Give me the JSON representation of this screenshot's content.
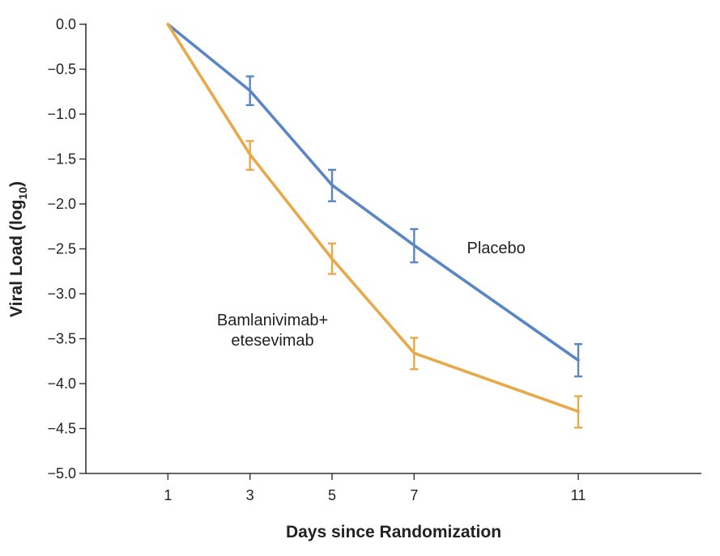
{
  "chart_data": {
    "type": "line",
    "xlabel": "Days since Randomization",
    "ylabel_main": "Viral Load (log",
    "ylabel_sub": "10",
    "ylabel_close": ")",
    "x": [
      1,
      3,
      5,
      7,
      11
    ],
    "x_ticks": [
      "1",
      "3",
      "5",
      "7",
      "11"
    ],
    "xlim": [
      -1,
      14
    ],
    "ylim": [
      -5.0,
      0.0
    ],
    "y_ticks": [
      "0.0",
      "−0.5",
      "−1.0",
      "−1.5",
      "−2.0",
      "−2.5",
      "−3.0",
      "−3.5",
      "−4.0",
      "−4.5",
      "−5.0"
    ],
    "y_tick_values": [
      0.0,
      -0.5,
      -1.0,
      -1.5,
      -2.0,
      -2.5,
      -3.0,
      -3.5,
      -4.0,
      -4.5,
      -5.0
    ],
    "grid": false,
    "series": [
      {
        "name": "Placebo",
        "label_lines": [
          "Placebo"
        ],
        "label_at": [
          9.0,
          -2.55
        ],
        "color": "#5a86c4",
        "values": [
          0.0,
          -0.74,
          -1.79,
          -2.46,
          -3.74
        ],
        "err_low": [
          null,
          -0.9,
          -1.97,
          -2.65,
          -3.92
        ],
        "err_high": [
          null,
          -0.58,
          -1.62,
          -2.28,
          -3.56
        ]
      },
      {
        "name": "Bamlanivimab+ etesevimab",
        "label_lines": [
          "Bamlanivimab+",
          "etesevimab"
        ],
        "label_at": [
          3.55,
          -3.35
        ],
        "color": "#e8a94a",
        "values": [
          0.0,
          -1.45,
          -2.61,
          -3.66,
          -4.31
        ],
        "err_low": [
          null,
          -1.62,
          -2.78,
          -3.84,
          -4.49
        ],
        "err_high": [
          null,
          -1.3,
          -2.44,
          -3.49,
          -4.14
        ]
      }
    ]
  }
}
